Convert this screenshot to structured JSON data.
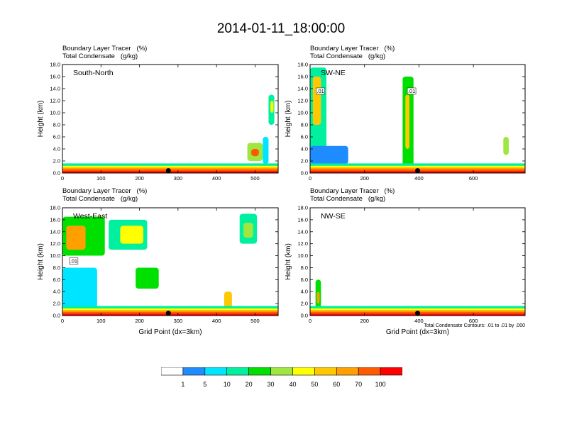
{
  "title": "2014-01-11_18:00:00",
  "panel_header": {
    "line1": "Boundary Layer Tracer   (%)",
    "line2": "Total Condensate   (g/kg)"
  },
  "y_axis_label": "Height (km)",
  "x_axis_label": "Grid Point (dx=3km)",
  "contour_note": "Total Condensate Contours: .01 to .01 by .000",
  "colorbar": {
    "colors": [
      "#ffffff",
      "#1e8cff",
      "#00e5ff",
      "#00f0a0",
      "#00e000",
      "#a0e640",
      "#ffff00",
      "#ffc800",
      "#ffa000",
      "#ff5a00",
      "#ff0000"
    ],
    "labels": [
      "1",
      "5",
      "10",
      "20",
      "30",
      "40",
      "50",
      "60",
      "70",
      "100"
    ]
  },
  "chart_data": [
    {
      "type": "heatmap",
      "panel_title": "South-North",
      "y_ticks": [
        "0.0",
        "2.0",
        "4.0",
        "6.0",
        "8.0",
        "10.0",
        "12.0",
        "14.0",
        "16.0",
        "18.0"
      ],
      "x_ticks": [
        0,
        100,
        200,
        300,
        400,
        500
      ],
      "xlim": [
        0,
        560
      ],
      "ylim": [
        0,
        18
      ],
      "marker_x": 275,
      "contour_labels": []
    },
    {
      "type": "heatmap",
      "panel_title": "SW-NE",
      "y_ticks": [
        "0.0",
        "2.0",
        "4.0",
        "6.0",
        "8.0",
        "10.0",
        "12.0",
        "14.0",
        "16.0",
        "18.0"
      ],
      "x_ticks": [
        0,
        200,
        400,
        600
      ],
      "xlim": [
        0,
        790
      ],
      "ylim": [
        0,
        18
      ],
      "marker_x": 395,
      "contour_labels": [
        ".01",
        ".01"
      ]
    },
    {
      "type": "heatmap",
      "panel_title": "West-East",
      "y_ticks": [
        "0.0",
        "2.0",
        "4.0",
        "6.0",
        "8.0",
        "10.0",
        "12.0",
        "14.0",
        "16.0",
        "18.0"
      ],
      "x_ticks": [
        0,
        100,
        200,
        300,
        400,
        500
      ],
      "xlim": [
        0,
        560
      ],
      "ylim": [
        0,
        18
      ],
      "marker_x": 275,
      "contour_labels": [
        ".01"
      ]
    },
    {
      "type": "heatmap",
      "panel_title": "NW-SE",
      "y_ticks": [
        "0.0",
        "2.0",
        "4.0",
        "6.0",
        "8.0",
        "10.0",
        "12.0",
        "14.0",
        "16.0",
        "18.0"
      ],
      "x_ticks": [
        0,
        200,
        400,
        600
      ],
      "xlim": [
        0,
        790
      ],
      "ylim": [
        0,
        18
      ],
      "marker_x": 395,
      "contour_labels": []
    }
  ]
}
